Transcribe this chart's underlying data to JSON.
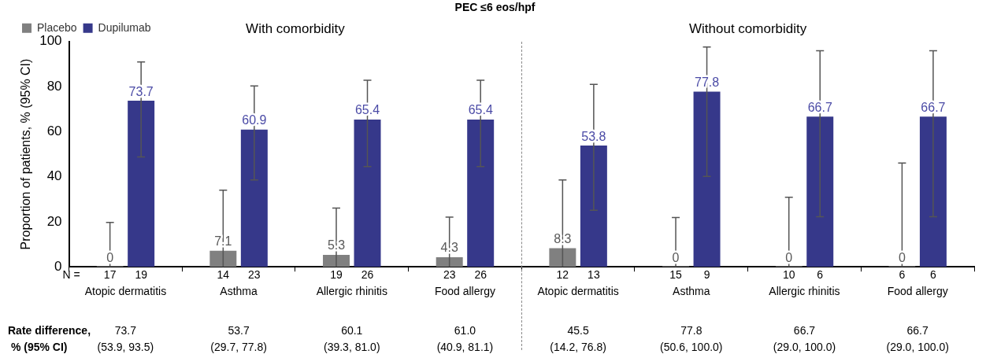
{
  "chart_data": {
    "type": "bar",
    "title": "PEC ≤6 eos/hpf",
    "ylabel": "Proportion of patients, % (95% CI)",
    "categories": [
      "Atopic dermatitis",
      "Asthma",
      "Allergic rhinitis",
      "Food allergy",
      "Atopic dermatitis",
      "Asthma",
      "Allergic rhinitis",
      "Food allergy"
    ],
    "series": [
      {
        "name": "Placebo",
        "color": "#808080",
        "values": [
          0,
          7.1,
          5.3,
          4.3,
          8.3,
          0,
          0,
          0
        ],
        "errors": [
          [
            0,
            19.7
          ],
          [
            0,
            34.0
          ],
          [
            0,
            26.1
          ],
          [
            0,
            22.1
          ],
          [
            0,
            38.6
          ],
          [
            0,
            21.9
          ],
          [
            0,
            30.9
          ],
          [
            0,
            46.1
          ]
        ]
      },
      {
        "name": "Dupilumab",
        "color": "#36388a",
        "values": [
          73.7,
          60.9,
          65.4,
          65.4,
          53.8,
          77.8,
          66.7,
          66.7
        ],
        "errors": [
          [
            48.8,
            90.9
          ],
          [
            38.6,
            80.3
          ],
          [
            44.5,
            82.8
          ],
          [
            44.5,
            82.8
          ],
          [
            25.1,
            81.0
          ],
          [
            40.1,
            97.6
          ],
          [
            22.2,
            95.9
          ],
          [
            22.2,
            95.9
          ]
        ]
      }
    ],
    "ylim": [
      0,
      100
    ],
    "yticks": [
      0,
      20,
      40,
      60,
      80,
      100
    ],
    "grid": false,
    "legend": "top left",
    "data_labels": true,
    "annotations": [
      "With comorbidity",
      "Without comorbidity",
      "N =",
      "17",
      "19",
      "14",
      "23",
      "19",
      "26",
      "23",
      "26",
      "12",
      "13",
      "15",
      "9",
      "10",
      "6",
      "6",
      "6",
      "Rate difference,",
      " % (95% CI)",
      "73.7",
      "53.7",
      "60.1",
      "61.0",
      "45.5",
      "77.8",
      "66.7",
      "66.7",
      "(53.9, 93.5)",
      "(29.7, 77.8)",
      "(39.3, 81.0)",
      "(40.9, 81.1)",
      "(14.2, 76.8)",
      "(50.6, 100.0)",
      "(29.0, 100.0)",
      "(29.0, 100.0)"
    ]
  }
}
